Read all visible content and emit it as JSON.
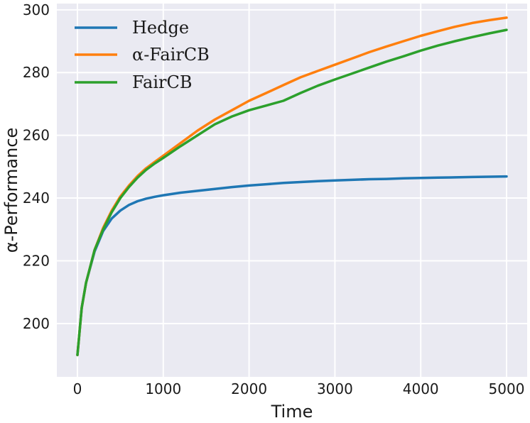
{
  "chart_data": {
    "type": "line",
    "xlabel": "Time",
    "ylabel": "α-Performance",
    "xlim": [
      -240,
      5240
    ],
    "ylim": [
      183,
      302
    ],
    "xticks": [
      0,
      1000,
      2000,
      3000,
      4000,
      5000
    ],
    "yticks": [
      200,
      220,
      240,
      260,
      280,
      300
    ],
    "grid": true,
    "background": "#eaeaf2",
    "legend_position": "top-left",
    "x": [
      0,
      50,
      100,
      200,
      300,
      400,
      500,
      600,
      700,
      800,
      900,
      1000,
      1200,
      1400,
      1600,
      1800,
      2000,
      2200,
      2400,
      2600,
      2800,
      3000,
      3200,
      3400,
      3600,
      3800,
      4000,
      4200,
      4400,
      4600,
      4800,
      5000
    ],
    "series": [
      {
        "name": "Hedge",
        "color": "#1f77b4",
        "values": [
          190,
          205,
          213,
          223,
          229.5,
          233.5,
          236,
          237.8,
          239,
          239.8,
          240.4,
          240.9,
          241.7,
          242.3,
          242.9,
          243.5,
          244,
          244.4,
          244.8,
          245.1,
          245.4,
          245.6,
          245.8,
          246,
          246.1,
          246.3,
          246.4,
          246.5,
          246.6,
          246.7,
          246.8,
          246.9
        ]
      },
      {
        "name": "α-FairCB",
        "color": "#ff7f0e",
        "values": [
          190,
          205,
          213,
          223.5,
          230.5,
          236,
          240.5,
          244,
          247,
          249.5,
          251.5,
          253.5,
          257.5,
          261.5,
          265,
          268,
          271,
          273.5,
          276,
          278.5,
          280.5,
          282.5,
          284.5,
          286.5,
          288.3,
          290,
          291.7,
          293.2,
          294.6,
          295.8,
          296.7,
          297.5
        ]
      },
      {
        "name": "FairCB",
        "color": "#2ca02c",
        "values": [
          190,
          205,
          213,
          223.5,
          230,
          235.5,
          240,
          243.5,
          246.5,
          249,
          251,
          252.8,
          256.5,
          260,
          263.5,
          266,
          268,
          269.5,
          271,
          273.5,
          275.8,
          277.8,
          279.7,
          281.6,
          283.5,
          285.2,
          287,
          288.6,
          290,
          291.3,
          292.5,
          293.6
        ]
      }
    ]
  },
  "legend": {
    "items": [
      {
        "label": "Hedge",
        "color": "#1f77b4"
      },
      {
        "label": "α-FairCB",
        "color": "#ff7f0e"
      },
      {
        "label": "FairCB",
        "color": "#2ca02c"
      }
    ]
  }
}
